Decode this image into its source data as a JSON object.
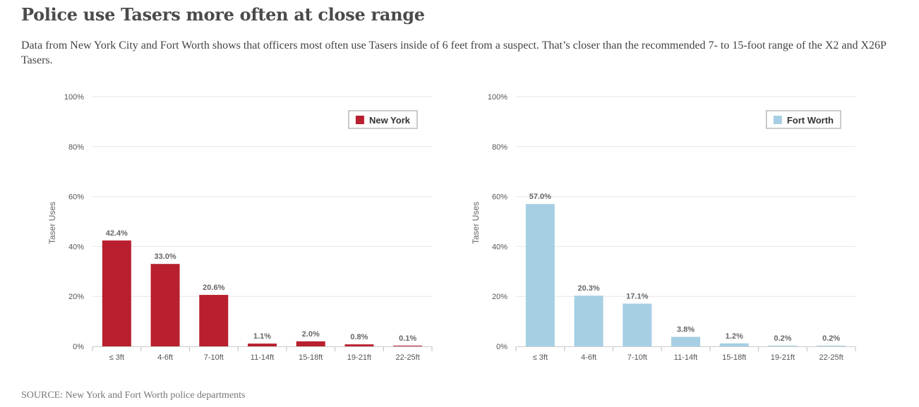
{
  "page": {
    "title": "Police use Tasers more often at close range",
    "subtitle": "Data from New York City and Fort Worth shows that officers most often use Tasers inside of 6 feet from a suspect. That’s closer than the recommended 7- to 15-foot range of the X2 and X26P Tasers.",
    "source": "SOURCE: New York and Fort Worth police departments"
  },
  "chart_data": [
    {
      "type": "bar",
      "legend": "New York",
      "legend_position": "top-right",
      "color": "#b8202f",
      "ylabel": "Taser Uses",
      "ylim": [
        0,
        100
      ],
      "yticks": [
        "0%",
        "20%",
        "40%",
        "60%",
        "80%",
        "100%"
      ],
      "grid": true,
      "categories": [
        "≤ 3ft",
        "4-6ft",
        "7-10ft",
        "11-14ft",
        "15-18ft",
        "19-21ft",
        "22-25ft"
      ],
      "values": [
        42.4,
        33.0,
        20.6,
        1.1,
        2.0,
        0.8,
        0.1
      ],
      "value_labels": [
        "42.4%",
        "33.0%",
        "20.6%",
        "1.1%",
        "2.0%",
        "0.8%",
        "0.1%"
      ]
    },
    {
      "type": "bar",
      "legend": "Fort Worth",
      "legend_position": "top-right",
      "color": "#a6cfe3",
      "ylabel": "Taser Uses",
      "ylim": [
        0,
        100
      ],
      "yticks": [
        "0%",
        "20%",
        "40%",
        "60%",
        "80%",
        "100%"
      ],
      "grid": true,
      "categories": [
        "≤ 3ft",
        "4-6ft",
        "7-10ft",
        "11-14ft",
        "15-18ft",
        "19-21ft",
        "22-25ft"
      ],
      "values": [
        57.0,
        20.3,
        17.1,
        3.8,
        1.2,
        0.2,
        0.2
      ],
      "value_labels": [
        "57.0%",
        "20.3%",
        "17.1%",
        "3.8%",
        "1.2%",
        "0.2%",
        "0.2%"
      ]
    }
  ]
}
